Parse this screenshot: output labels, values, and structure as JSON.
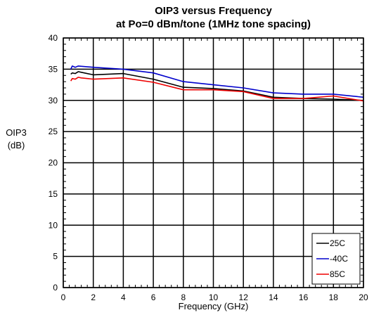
{
  "chart_data": {
    "type": "line",
    "title_lines": [
      "OIP3 versus Frequency",
      "at Po=0 dBm/tone (1MHz tone spacing)"
    ],
    "xlabel": "Frequency (GHz)",
    "ylabel_lines": [
      "OIP3",
      "(dB)"
    ],
    "xlim": [
      0,
      20
    ],
    "ylim": [
      0,
      40
    ],
    "xticks": [
      0,
      2,
      4,
      6,
      8,
      10,
      12,
      14,
      16,
      18,
      20
    ],
    "yticks": [
      0,
      5,
      10,
      15,
      20,
      25,
      30,
      35,
      40
    ],
    "grid": true,
    "legend_position": "bottom-right",
    "series": [
      {
        "name": "25C",
        "color": "#000000",
        "x": [
          0.5,
          0.6,
          0.8,
          1.0,
          1.2,
          2.0,
          4.0,
          6.0,
          8.0,
          10.0,
          12.0,
          14.0,
          16.0,
          18.0,
          20.0
        ],
        "y": [
          34.2,
          34.4,
          34.3,
          34.6,
          34.5,
          34.1,
          34.3,
          33.4,
          32.1,
          31.9,
          31.5,
          30.5,
          30.3,
          30.2,
          30.0
        ]
      },
      {
        "name": "-40C",
        "color": "#0000cc",
        "x": [
          0.5,
          0.6,
          0.8,
          1.0,
          2.0,
          4.0,
          6.0,
          8.0,
          10.0,
          12.0,
          14.0,
          16.0,
          18.0,
          20.0
        ],
        "y": [
          35.0,
          35.5,
          35.3,
          35.5,
          35.3,
          35.0,
          34.4,
          33.0,
          32.5,
          32.0,
          31.2,
          31.0,
          31.0,
          30.5
        ]
      },
      {
        "name": "85C",
        "color": "#ee0000",
        "x": [
          0.5,
          0.6,
          0.8,
          1.0,
          1.2,
          2.0,
          4.0,
          6.0,
          8.0,
          10.0,
          12.0,
          14.0,
          16.0,
          18.0,
          20.0
        ],
        "y": [
          33.1,
          33.5,
          33.4,
          33.7,
          33.6,
          33.4,
          33.6,
          32.9,
          31.7,
          31.7,
          31.4,
          30.3,
          30.3,
          30.7,
          29.9
        ]
      }
    ]
  }
}
